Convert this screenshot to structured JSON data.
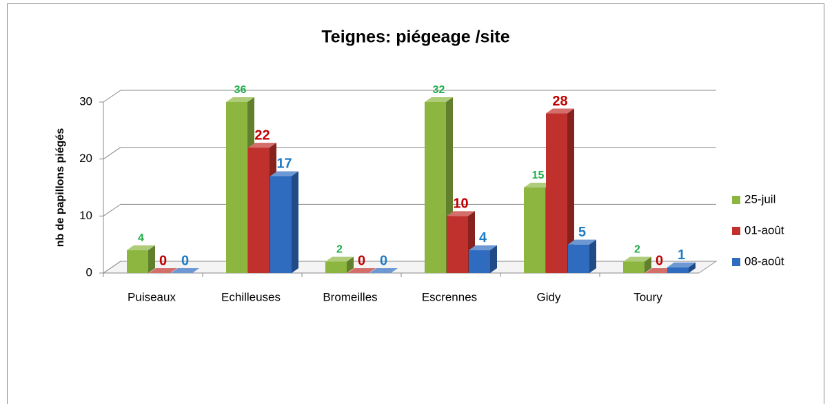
{
  "chart_data": {
    "type": "bar3d",
    "title": "Teignes: piégeage /site",
    "y_label": "nb de papillons piégés",
    "categories": [
      "Puiseaux",
      "Echilleuses",
      "Bromeilles",
      "Escrennes",
      "Gidy",
      "Toury"
    ],
    "series": [
      {
        "name": "25-juil",
        "color": "#8cb640",
        "label_color": "#1fae4a",
        "values": [
          4,
          36,
          2,
          32,
          15,
          2
        ]
      },
      {
        "name": "01-août",
        "color": "#c0302c",
        "label_color": "#c00000",
        "values": [
          0,
          22,
          0,
          10,
          28,
          0
        ]
      },
      {
        "name": "08-août",
        "color": "#2f6cc0",
        "label_color": "#1f7bc4",
        "values": [
          0,
          17,
          0,
          4,
          5,
          1
        ]
      }
    ],
    "ylim": [
      0,
      30
    ],
    "yticks": [
      0,
      10,
      20,
      30
    ],
    "grid": true,
    "legend": "right"
  }
}
